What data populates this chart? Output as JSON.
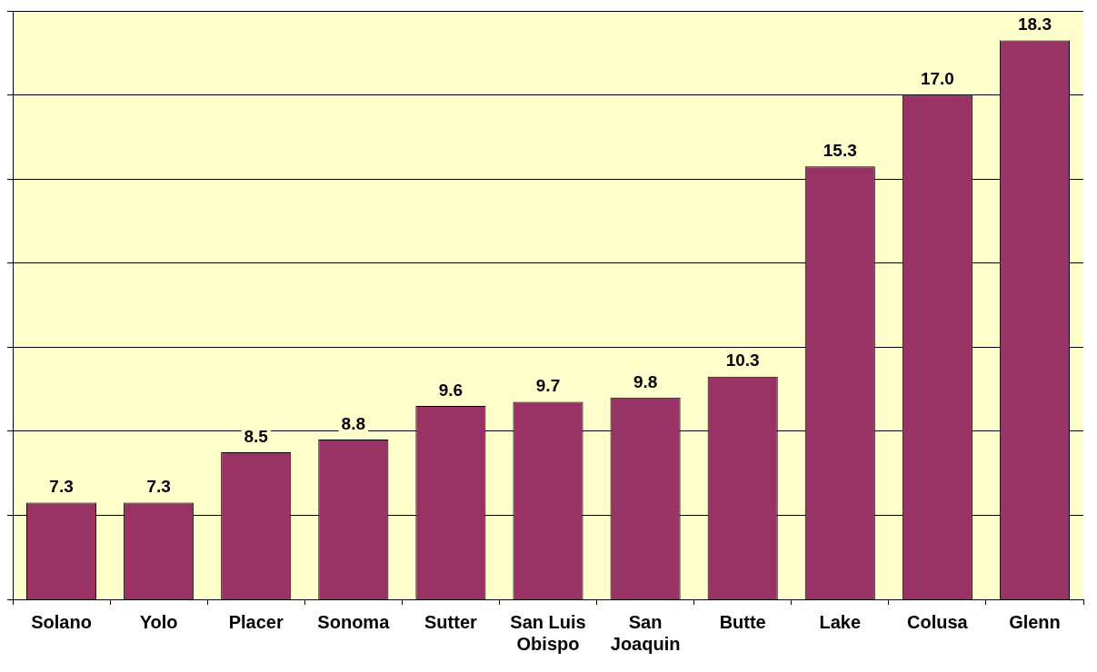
{
  "chart_data": {
    "type": "bar",
    "categories": [
      "Solano",
      "Yolo",
      "Placer",
      "Sonoma",
      "Sutter",
      "San Luis Obispo",
      "San Joaquin",
      "Butte",
      "Lake",
      "Colusa",
      "Glenn"
    ],
    "values": [
      7.3,
      7.3,
      8.5,
      8.8,
      9.6,
      9.7,
      9.8,
      10.3,
      15.3,
      17.0,
      18.3
    ],
    "value_labels": [
      "7.3",
      "7.3",
      "8.5",
      "8.8",
      "9.6",
      "9.7",
      "9.8",
      "10.3",
      "15.3",
      "17.0",
      "18.3"
    ],
    "color": "#993366",
    "ylim": [
      5,
      19
    ],
    "yticks": [
      {
        "value": 5,
        "label": null
      },
      {
        "value": 7,
        "label": null
      },
      {
        "value": 9,
        "label": null
      },
      {
        "value": 11,
        "label": null
      },
      {
        "value": 13,
        "label": null
      },
      {
        "value": 15,
        "label": null
      },
      {
        "value": 17,
        "label": null
      },
      {
        "value": 19,
        "label": null
      }
    ],
    "grid": "y",
    "tick_labels": "x",
    "legend": false
  }
}
